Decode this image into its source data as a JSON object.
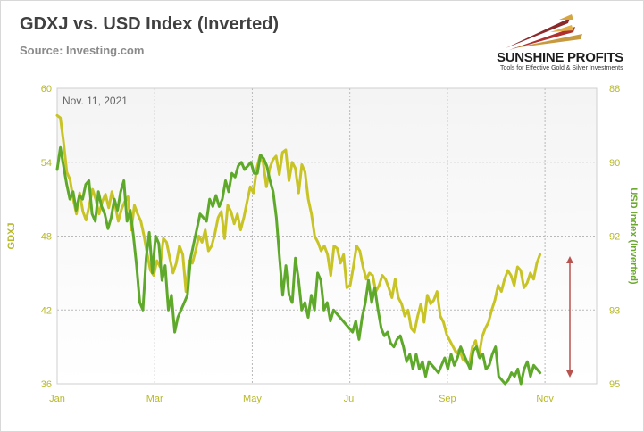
{
  "header": {
    "title": "GDXJ vs. USD Index (Inverted)",
    "source": "Source: Investing.com"
  },
  "logo": {
    "name": "SUNSHINE PROFITS",
    "tagline": "Tools for Effective Gold & Silver Investments"
  },
  "colors": {
    "gdxj": "#c8c426",
    "usd": "#5ea82a",
    "axis_text": "#b7b92a",
    "usd_axis_text": "#6aa82e",
    "arrow": "#b85450",
    "plot_top": "#f4f4f4",
    "plot_bottom": "#ffffff"
  },
  "chart_data": {
    "type": "line",
    "title": "GDXJ vs. USD Index (Inverted)",
    "annotation": "Nov. 11, 2021",
    "x_tick_labels": [
      "Jan",
      "Mar",
      "May",
      "Jul",
      "Sep",
      "Nov"
    ],
    "y_left": {
      "label": "GDXJ",
      "ticks": [
        60,
        54,
        48,
        42,
        36
      ],
      "range": [
        36,
        60
      ]
    },
    "y_right": {
      "label": "USD Index (Inverted)",
      "ticks": [
        88,
        90,
        92,
        93,
        95
      ],
      "inverted": true
    },
    "grid": true,
    "arrow": "vertical double-headed arrow to the right of the last data point",
    "series": [
      {
        "name": "GDXJ",
        "axis": "left",
        "values": [
          57.8,
          57.6,
          55.6,
          53.2,
          52.6,
          51.0,
          49.8,
          51.5,
          50.0,
          49.3,
          50.5,
          51.8,
          51.0,
          49.8,
          50.8,
          51.4,
          50.3,
          51.6,
          50.5,
          49.2,
          50.2,
          50.8,
          51.2,
          48.5,
          50.5,
          49.8,
          49.2,
          48.0,
          46.5,
          45.2,
          44.8,
          46.0,
          45.5,
          47.8,
          47.5,
          46.2,
          45.0,
          45.8,
          47.2,
          46.5,
          43.5,
          46.0,
          45.8,
          46.8,
          48.0,
          47.5,
          48.5,
          46.8,
          47.2,
          48.2,
          49.5,
          50.0,
          47.8,
          50.5,
          50.0,
          49.0,
          49.8,
          48.5,
          49.5,
          50.8,
          52.0,
          51.5,
          53.5,
          54.5,
          54.0,
          52.0,
          53.5,
          54.2,
          54.5,
          53.0,
          54.8,
          55.0,
          52.5,
          54.0,
          53.5,
          51.5,
          53.8,
          53.2,
          51.0,
          49.8,
          48.0,
          47.5,
          46.8,
          47.2,
          46.5,
          44.8,
          47.2,
          47.0,
          45.8,
          46.5,
          43.8,
          44.0,
          45.5,
          47.2,
          46.8,
          45.5,
          44.5,
          45.0,
          44.8,
          43.5,
          44.0,
          44.8,
          44.5,
          43.8,
          43.0,
          44.5,
          43.0,
          42.5,
          41.5,
          42.0,
          40.5,
          40.2,
          41.5,
          42.5,
          41.0,
          43.2,
          42.5,
          42.8,
          43.5,
          41.5,
          41.0,
          40.0,
          39.5,
          39.0,
          38.5,
          38.8,
          38.0,
          37.8,
          37.5,
          39.0,
          39.5,
          38.2,
          39.8,
          40.5,
          41.0,
          42.0,
          42.8,
          44.0,
          43.5,
          44.5,
          45.2,
          44.8,
          44.0,
          45.5,
          45.2,
          43.8,
          44.2,
          45.0,
          44.5,
          45.8,
          46.5
        ]
      },
      {
        "name": "USD Index (Inverted)",
        "axis": "right",
        "values": [
          90.2,
          89.6,
          90.1,
          90.6,
          91.0,
          90.8,
          91.3,
          90.9,
          91.0,
          90.6,
          90.5,
          91.4,
          91.6,
          90.8,
          91.2,
          91.4,
          91.8,
          91.5,
          91.0,
          91.3,
          90.8,
          90.5,
          91.6,
          91.3,
          92.0,
          92.4,
          92.9,
          93.0,
          92.3,
          91.9,
          92.5,
          92.0,
          92.1,
          92.6,
          92.4,
          93.0,
          92.8,
          93.6,
          93.2,
          93.0,
          92.9,
          92.8,
          92.3,
          92.1,
          91.8,
          91.4,
          91.5,
          91.6,
          91.0,
          91.2,
          90.9,
          91.2,
          91.0,
          90.5,
          90.8,
          90.3,
          90.4,
          90.1,
          90.0,
          90.2,
          90.1,
          90.0,
          90.3,
          90.3,
          89.8,
          89.9,
          90.1,
          90.5,
          90.8,
          91.5,
          92.3,
          92.8,
          92.4,
          92.8,
          92.9,
          92.3,
          92.6,
          93.0,
          92.9,
          93.2,
          92.8,
          93.0,
          92.5,
          92.6,
          93.0,
          92.9,
          93.3,
          93.0,
          93.1,
          93.2,
          93.3,
          93.4,
          93.5,
          93.6,
          93.3,
          93.8,
          93.2,
          92.9,
          92.6,
          92.9,
          92.7,
          93.0,
          93.5,
          93.7,
          93.6,
          93.9,
          94.0,
          93.8,
          93.7,
          94.0,
          94.4,
          94.2,
          94.6,
          94.2,
          94.6,
          94.4,
          94.8,
          94.4,
          94.5,
          94.6,
          94.7,
          94.5,
          94.3,
          94.6,
          94.2,
          94.5,
          94.3,
          94.0,
          94.2,
          94.4,
          94.6,
          94.1,
          94.0,
          94.3,
          94.2,
          94.6,
          94.5,
          94.2,
          94.0,
          94.8,
          94.9,
          95.0,
          94.9,
          94.7,
          94.8,
          94.6,
          95.0,
          94.6,
          94.4,
          94.8,
          94.5,
          94.6,
          94.7
        ]
      }
    ]
  }
}
